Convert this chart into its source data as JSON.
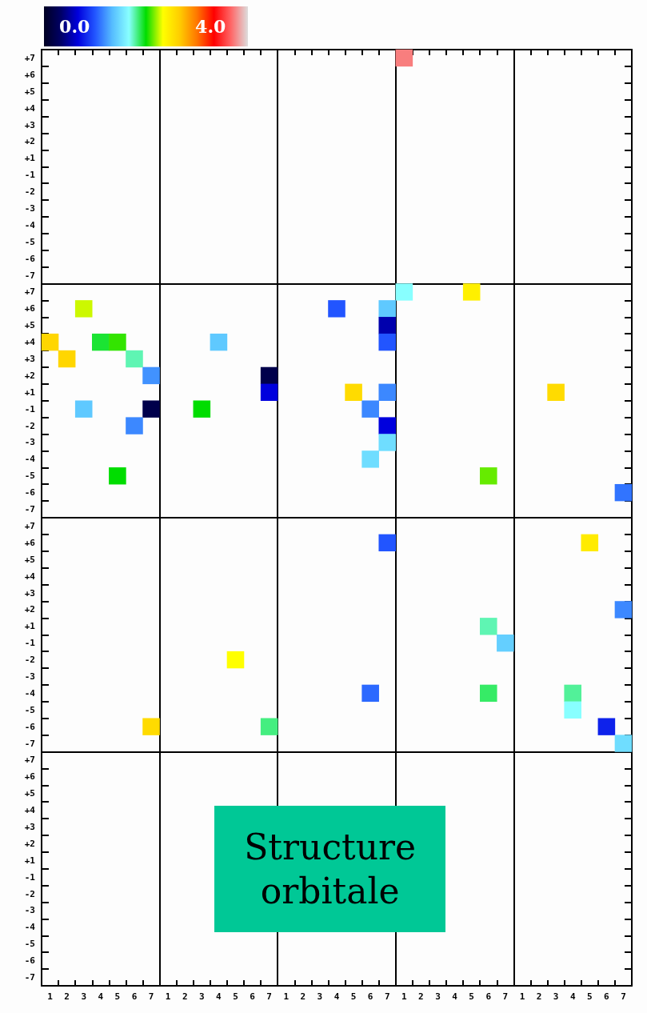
{
  "chart_data": {
    "type": "heatmap",
    "grid": true,
    "clim": [
      -0.9,
      5.1
    ],
    "cticks": [
      {
        "value": 0,
        "label": "0.0"
      },
      {
        "value": 4,
        "label": "4.0"
      }
    ],
    "annotations": [
      "Structure orbitale"
    ],
    "categories": [
      "1",
      "2",
      "3",
      "4",
      "5",
      "6",
      "7",
      "1",
      "2",
      "3",
      "4",
      "5",
      "6",
      "7",
      "1",
      "2",
      "3",
      "4",
      "5",
      "6",
      "7",
      "1",
      "2",
      "3",
      "4",
      "5",
      "6",
      "7",
      "1",
      "2",
      "3",
      "4",
      "5",
      "6",
      "7"
    ],
    "y_categories": [
      "+7",
      "+6",
      "+5",
      "+4",
      "+3",
      "+2",
      "+1",
      "-1",
      "-2",
      "-3",
      "-4",
      "-5",
      "-6",
      "-7",
      "+7",
      "+6",
      "+5",
      "+4",
      "+3",
      "+2",
      "+1",
      "-1",
      "-2",
      "-3",
      "-4",
      "-5",
      "-6",
      "-7",
      "+7",
      "+6",
      "+5",
      "+4",
      "+3",
      "+2",
      "+1",
      "-1",
      "-2",
      "-3",
      "-4",
      "-5",
      "-6",
      "-7",
      "+7",
      "+6",
      "+5",
      "+4",
      "+3",
      "+2",
      "+1",
      "-1",
      "-2",
      "-3",
      "-4",
      "-5",
      "-6",
      "-7"
    ],
    "cells": [
      [
        null,
        null,
        null,
        null,
        null,
        null,
        null,
        null,
        null,
        null,
        null,
        null,
        null,
        null,
        null,
        null,
        null,
        null,
        null,
        null,
        null,
        4.7,
        null,
        null,
        null,
        null,
        null,
        null,
        null,
        null,
        null,
        null,
        null,
        null,
        null
      ],
      [
        null,
        null,
        null,
        null,
        null,
        null,
        null,
        null,
        null,
        null,
        null,
        null,
        null,
        null,
        null,
        null,
        null,
        null,
        null,
        null,
        null,
        null,
        null,
        null,
        null,
        null,
        null,
        null,
        null,
        null,
        null,
        null,
        null,
        null,
        null
      ],
      [
        null,
        null,
        null,
        null,
        null,
        null,
        null,
        null,
        null,
        null,
        null,
        null,
        null,
        null,
        null,
        null,
        null,
        null,
        null,
        null,
        null,
        null,
        null,
        null,
        null,
        null,
        null,
        null,
        null,
        null,
        null,
        null,
        null,
        null,
        null
      ],
      [
        null,
        null,
        null,
        null,
        null,
        null,
        null,
        null,
        null,
        null,
        null,
        null,
        null,
        null,
        null,
        null,
        null,
        null,
        null,
        null,
        null,
        null,
        null,
        null,
        null,
        null,
        null,
        null,
        null,
        null,
        null,
        null,
        null,
        null,
        null
      ],
      [
        null,
        null,
        null,
        null,
        null,
        null,
        null,
        null,
        null,
        null,
        null,
        null,
        null,
        null,
        null,
        null,
        null,
        null,
        null,
        null,
        null,
        null,
        null,
        null,
        null,
        null,
        null,
        null,
        null,
        null,
        null,
        null,
        null,
        null,
        null
      ],
      [
        null,
        null,
        null,
        null,
        null,
        null,
        null,
        null,
        null,
        null,
        null,
        null,
        null,
        null,
        null,
        null,
        null,
        null,
        null,
        null,
        null,
        null,
        null,
        null,
        null,
        null,
        null,
        null,
        null,
        null,
        null,
        null,
        null,
        null,
        null
      ],
      [
        null,
        null,
        null,
        null,
        null,
        null,
        null,
        null,
        null,
        null,
        null,
        null,
        null,
        null,
        null,
        null,
        null,
        null,
        null,
        null,
        null,
        null,
        null,
        null,
        null,
        null,
        null,
        null,
        null,
        null,
        null,
        null,
        null,
        null,
        null
      ],
      [
        null,
        null,
        null,
        null,
        null,
        null,
        null,
        null,
        null,
        null,
        null,
        null,
        null,
        null,
        null,
        null,
        null,
        null,
        null,
        null,
        null,
        null,
        null,
        null,
        null,
        null,
        null,
        null,
        null,
        null,
        null,
        null,
        null,
        null,
        null
      ],
      [
        null,
        null,
        null,
        null,
        null,
        null,
        null,
        null,
        null,
        null,
        null,
        null,
        null,
        null,
        null,
        null,
        null,
        null,
        null,
        null,
        null,
        null,
        null,
        null,
        null,
        null,
        null,
        null,
        null,
        null,
        null,
        null,
        null,
        null,
        null
      ],
      [
        null,
        null,
        null,
        null,
        null,
        null,
        null,
        null,
        null,
        null,
        null,
        null,
        null,
        null,
        null,
        null,
        null,
        null,
        null,
        null,
        null,
        null,
        null,
        null,
        null,
        null,
        null,
        null,
        null,
        null,
        null,
        null,
        null,
        null,
        null
      ],
      [
        null,
        null,
        null,
        null,
        null,
        null,
        null,
        null,
        null,
        null,
        null,
        null,
        null,
        null,
        null,
        null,
        null,
        null,
        null,
        null,
        null,
        null,
        null,
        null,
        null,
        null,
        null,
        null,
        null,
        null,
        null,
        null,
        null,
        null,
        null
      ],
      [
        null,
        null,
        null,
        null,
        null,
        null,
        null,
        null,
        null,
        null,
        null,
        null,
        null,
        null,
        null,
        null,
        null,
        null,
        null,
        null,
        null,
        null,
        null,
        null,
        null,
        null,
        null,
        null,
        null,
        null,
        null,
        null,
        null,
        null,
        null
      ],
      [
        null,
        null,
        null,
        null,
        null,
        null,
        null,
        null,
        null,
        null,
        null,
        null,
        null,
        null,
        null,
        null,
        null,
        null,
        null,
        null,
        null,
        null,
        null,
        null,
        null,
        null,
        null,
        null,
        null,
        null,
        null,
        null,
        null,
        null,
        null
      ],
      [
        null,
        null,
        null,
        null,
        null,
        null,
        null,
        null,
        null,
        null,
        null,
        null,
        null,
        null,
        null,
        null,
        null,
        null,
        null,
        null,
        null,
        null,
        null,
        null,
        null,
        null,
        null,
        null,
        null,
        null,
        null,
        null,
        null,
        null,
        null
      ],
      [
        null,
        null,
        null,
        null,
        null,
        null,
        null,
        null,
        null,
        null,
        null,
        null,
        null,
        null,
        null,
        null,
        null,
        null,
        null,
        null,
        null,
        1.6,
        null,
        null,
        null,
        2.75,
        null,
        null,
        null,
        null,
        null,
        null,
        null,
        null,
        null
      ],
      [
        null,
        null,
        2.5,
        null,
        null,
        null,
        null,
        null,
        null,
        null,
        null,
        null,
        null,
        null,
        null,
        null,
        null,
        0.6,
        null,
        null,
        1.2,
        null,
        null,
        null,
        null,
        null,
        null,
        null,
        null,
        null,
        null,
        null,
        null,
        null,
        null
      ],
      [
        null,
        null,
        null,
        null,
        null,
        null,
        null,
        null,
        null,
        null,
        null,
        null,
        null,
        null,
        null,
        null,
        null,
        null,
        null,
        null,
        -0.1,
        null,
        null,
        null,
        null,
        null,
        null,
        null,
        null,
        null,
        null,
        null,
        null,
        null,
        null
      ],
      [
        3.0,
        null,
        null,
        2.0,
        2.2,
        null,
        null,
        null,
        null,
        null,
        1.2,
        null,
        null,
        null,
        null,
        null,
        null,
        null,
        null,
        null,
        0.6,
        null,
        null,
        null,
        null,
        null,
        null,
        null,
        null,
        null,
        null,
        null,
        null,
        null,
        null
      ],
      [
        null,
        3.0,
        null,
        null,
        null,
        1.75,
        null,
        null,
        null,
        null,
        null,
        null,
        null,
        null,
        null,
        null,
        null,
        null,
        null,
        null,
        null,
        null,
        null,
        null,
        null,
        null,
        null,
        null,
        null,
        null,
        null,
        null,
        null,
        null,
        null
      ],
      [
        null,
        null,
        null,
        null,
        null,
        null,
        0.9,
        null,
        null,
        null,
        null,
        null,
        null,
        -0.6,
        null,
        null,
        null,
        null,
        null,
        null,
        null,
        null,
        null,
        null,
        null,
        null,
        null,
        null,
        null,
        null,
        null,
        null,
        null,
        null,
        null
      ],
      [
        null,
        null,
        null,
        null,
        null,
        null,
        null,
        null,
        null,
        null,
        null,
        null,
        null,
        0.1,
        null,
        null,
        null,
        null,
        2.95,
        null,
        0.85,
        null,
        null,
        null,
        null,
        null,
        null,
        null,
        null,
        null,
        2.95,
        null,
        null,
        null,
        null
      ],
      [
        null,
        null,
        1.2,
        null,
        null,
        null,
        -0.6,
        null,
        null,
        2.1,
        null,
        null,
        null,
        null,
        null,
        null,
        null,
        null,
        null,
        0.85,
        null,
        null,
        null,
        null,
        null,
        null,
        null,
        null,
        null,
        null,
        null,
        null,
        null,
        null,
        null
      ],
      [
        null,
        null,
        null,
        null,
        null,
        0.85,
        null,
        null,
        null,
        null,
        null,
        null,
        null,
        null,
        null,
        null,
        null,
        null,
        null,
        null,
        0.1,
        null,
        null,
        null,
        null,
        null,
        null,
        null,
        null,
        null,
        null,
        null,
        null,
        null,
        null
      ],
      [
        null,
        null,
        null,
        null,
        null,
        null,
        null,
        null,
        null,
        null,
        null,
        null,
        null,
        null,
        null,
        null,
        null,
        null,
        null,
        null,
        1.35,
        null,
        null,
        null,
        null,
        null,
        null,
        null,
        null,
        null,
        null,
        null,
        null,
        null,
        null
      ],
      [
        null,
        null,
        null,
        null,
        null,
        null,
        null,
        null,
        null,
        null,
        null,
        null,
        null,
        null,
        null,
        null,
        null,
        null,
        null,
        1.35,
        null,
        null,
        null,
        null,
        null,
        null,
        null,
        null,
        null,
        null,
        null,
        null,
        null,
        null,
        null
      ],
      [
        null,
        null,
        null,
        null,
        2.1,
        null,
        null,
        null,
        null,
        null,
        null,
        null,
        null,
        null,
        null,
        null,
        null,
        null,
        null,
        null,
        null,
        null,
        null,
        null,
        null,
        null,
        2.3,
        null,
        null,
        null,
        null,
        null,
        null,
        null,
        null
      ],
      [
        null,
        null,
        null,
        null,
        null,
        null,
        null,
        null,
        null,
        null,
        null,
        null,
        null,
        null,
        null,
        null,
        null,
        null,
        null,
        null,
        null,
        null,
        null,
        null,
        null,
        null,
        null,
        null,
        null,
        null,
        null,
        null,
        null,
        null,
        0.75
      ],
      [
        null,
        null,
        null,
        null,
        null,
        null,
        null,
        null,
        null,
        null,
        null,
        null,
        null,
        null,
        null,
        null,
        null,
        null,
        null,
        null,
        null,
        null,
        null,
        null,
        null,
        null,
        null,
        null,
        null,
        null,
        null,
        null,
        null,
        null,
        null
      ],
      [
        null,
        null,
        null,
        null,
        null,
        null,
        null,
        null,
        null,
        null,
        null,
        null,
        null,
        null,
        null,
        null,
        null,
        null,
        null,
        null,
        null,
        null,
        null,
        null,
        null,
        null,
        null,
        null,
        null,
        null,
        null,
        null,
        null,
        null,
        null
      ],
      [
        null,
        null,
        null,
        null,
        null,
        null,
        null,
        null,
        null,
        null,
        null,
        null,
        null,
        null,
        null,
        null,
        null,
        null,
        null,
        null,
        0.6,
        null,
        null,
        null,
        null,
        null,
        null,
        null,
        null,
        null,
        null,
        null,
        2.8,
        null,
        null
      ],
      [
        null,
        null,
        null,
        null,
        null,
        null,
        null,
        null,
        null,
        null,
        null,
        null,
        null,
        null,
        null,
        null,
        null,
        null,
        null,
        null,
        null,
        null,
        null,
        null,
        null,
        null,
        null,
        null,
        null,
        null,
        null,
        null,
        null,
        null,
        null
      ],
      [
        null,
        null,
        null,
        null,
        null,
        null,
        null,
        null,
        null,
        null,
        null,
        null,
        null,
        null,
        null,
        null,
        null,
        null,
        null,
        null,
        null,
        null,
        null,
        null,
        null,
        null,
        null,
        null,
        null,
        null,
        null,
        null,
        null,
        null,
        null
      ],
      [
        null,
        null,
        null,
        null,
        null,
        null,
        null,
        null,
        null,
        null,
        null,
        null,
        null,
        null,
        null,
        null,
        null,
        null,
        null,
        null,
        null,
        null,
        null,
        null,
        null,
        null,
        null,
        null,
        null,
        null,
        null,
        null,
        null,
        null,
        null
      ],
      [
        null,
        null,
        null,
        null,
        null,
        null,
        null,
        null,
        null,
        null,
        null,
        null,
        null,
        null,
        null,
        null,
        null,
        null,
        null,
        null,
        null,
        null,
        null,
        null,
        null,
        null,
        null,
        null,
        null,
        null,
        null,
        null,
        null,
        null,
        0.85
      ],
      [
        null,
        null,
        null,
        null,
        null,
        null,
        null,
        null,
        null,
        null,
        null,
        null,
        null,
        null,
        null,
        null,
        null,
        null,
        null,
        null,
        null,
        null,
        null,
        null,
        null,
        null,
        1.75,
        null,
        null,
        null,
        null,
        null,
        null,
        null,
        null
      ],
      [
        null,
        null,
        null,
        null,
        null,
        null,
        null,
        null,
        null,
        null,
        null,
        null,
        null,
        null,
        null,
        null,
        null,
        null,
        null,
        null,
        null,
        null,
        null,
        null,
        null,
        null,
        null,
        1.25,
        null,
        null,
        null,
        null,
        null,
        null,
        null
      ],
      [
        null,
        null,
        null,
        null,
        null,
        null,
        null,
        null,
        null,
        null,
        null,
        2.6,
        null,
        null,
        null,
        null,
        null,
        null,
        null,
        null,
        null,
        null,
        null,
        null,
        null,
        null,
        null,
        null,
        null,
        null,
        null,
        null,
        null,
        null,
        null
      ],
      [
        null,
        null,
        null,
        null,
        null,
        null,
        null,
        null,
        null,
        null,
        null,
        null,
        null,
        null,
        null,
        null,
        null,
        null,
        null,
        null,
        null,
        null,
        null,
        null,
        null,
        null,
        null,
        null,
        null,
        null,
        null,
        null,
        null,
        null,
        null
      ],
      [
        null,
        null,
        null,
        null,
        null,
        null,
        null,
        null,
        null,
        null,
        null,
        null,
        null,
        null,
        null,
        null,
        null,
        null,
        null,
        0.7,
        null,
        null,
        null,
        null,
        null,
        null,
        1.9,
        null,
        null,
        null,
        null,
        1.8,
        null,
        null,
        null
      ],
      [
        null,
        null,
        null,
        null,
        null,
        null,
        null,
        null,
        null,
        null,
        null,
        null,
        null,
        null,
        null,
        null,
        null,
        null,
        null,
        null,
        null,
        null,
        null,
        null,
        null,
        null,
        null,
        null,
        null,
        null,
        null,
        1.6,
        null,
        null,
        null
      ],
      [
        null,
        null,
        null,
        null,
        null,
        null,
        2.95,
        null,
        null,
        null,
        null,
        null,
        null,
        1.85,
        null,
        null,
        null,
        null,
        null,
        null,
        null,
        null,
        null,
        null,
        null,
        null,
        null,
        null,
        null,
        null,
        null,
        null,
        null,
        0.3,
        null
      ],
      [
        null,
        null,
        null,
        null,
        null,
        null,
        null,
        null,
        null,
        null,
        null,
        null,
        null,
        null,
        null,
        null,
        null,
        null,
        null,
        null,
        null,
        null,
        null,
        null,
        null,
        null,
        null,
        null,
        null,
        null,
        null,
        null,
        null,
        null,
        1.35
      ],
      [
        null,
        null,
        null,
        null,
        null,
        null,
        null,
        null,
        null,
        null,
        null,
        null,
        null,
        null,
        null,
        null,
        null,
        null,
        null,
        null,
        null,
        null,
        null,
        null,
        null,
        null,
        null,
        null,
        null,
        null,
        null,
        null,
        null,
        null,
        null
      ],
      [
        null,
        null,
        null,
        null,
        null,
        null,
        null,
        null,
        null,
        null,
        null,
        null,
        null,
        null,
        null,
        null,
        null,
        null,
        null,
        null,
        null,
        null,
        null,
        null,
        null,
        null,
        null,
        null,
        null,
        null,
        null,
        null,
        null,
        null,
        null
      ],
      [
        null,
        null,
        null,
        null,
        null,
        null,
        null,
        null,
        null,
        null,
        null,
        null,
        null,
        null,
        null,
        null,
        null,
        null,
        null,
        null,
        null,
        null,
        null,
        null,
        null,
        null,
        null,
        null,
        null,
        null,
        null,
        null,
        null,
        null,
        null
      ],
      [
        null,
        null,
        null,
        null,
        null,
        null,
        null,
        null,
        null,
        null,
        null,
        null,
        null,
        null,
        null,
        null,
        null,
        null,
        null,
        null,
        null,
        null,
        null,
        null,
        null,
        null,
        null,
        null,
        null,
        null,
        null,
        null,
        null,
        null,
        null
      ],
      [
        null,
        null,
        null,
        null,
        null,
        null,
        null,
        null,
        null,
        null,
        null,
        null,
        null,
        null,
        null,
        null,
        null,
        null,
        null,
        null,
        null,
        null,
        null,
        null,
        null,
        null,
        null,
        null,
        null,
        null,
        null,
        null,
        null,
        null,
        null
      ],
      [
        null,
        null,
        null,
        null,
        null,
        null,
        null,
        null,
        null,
        null,
        null,
        null,
        null,
        null,
        null,
        null,
        null,
        null,
        null,
        null,
        null,
        null,
        null,
        null,
        null,
        null,
        null,
        null,
        null,
        null,
        null,
        null,
        null,
        null,
        null
      ],
      [
        null,
        null,
        null,
        null,
        null,
        null,
        null,
        null,
        null,
        null,
        null,
        null,
        null,
        null,
        null,
        null,
        null,
        null,
        null,
        null,
        null,
        null,
        null,
        null,
        null,
        null,
        null,
        null,
        null,
        null,
        null,
        null,
        null,
        null,
        null
      ],
      [
        null,
        null,
        null,
        null,
        null,
        null,
        null,
        null,
        null,
        null,
        null,
        null,
        null,
        null,
        null,
        null,
        null,
        null,
        null,
        null,
        null,
        null,
        null,
        null,
        null,
        null,
        null,
        null,
        null,
        null,
        null,
        null,
        null,
        null,
        null
      ],
      [
        null,
        null,
        null,
        null,
        null,
        null,
        null,
        null,
        null,
        null,
        null,
        null,
        null,
        null,
        null,
        null,
        null,
        null,
        null,
        null,
        null,
        null,
        null,
        null,
        null,
        null,
        null,
        null,
        null,
        null,
        null,
        null,
        null,
        null,
        null
      ],
      [
        null,
        null,
        null,
        null,
        null,
        null,
        null,
        null,
        null,
        null,
        null,
        null,
        null,
        null,
        null,
        null,
        null,
        null,
        null,
        null,
        null,
        null,
        null,
        null,
        null,
        null,
        null,
        null,
        null,
        null,
        null,
        null,
        null,
        null,
        null
      ],
      [
        null,
        null,
        null,
        null,
        null,
        null,
        null,
        null,
        null,
        null,
        null,
        null,
        null,
        null,
        null,
        null,
        null,
        null,
        null,
        null,
        null,
        null,
        null,
        null,
        null,
        null,
        null,
        null,
        null,
        null,
        null,
        null,
        null,
        null,
        null
      ],
      [
        null,
        null,
        null,
        null,
        null,
        null,
        null,
        null,
        null,
        null,
        null,
        null,
        null,
        null,
        null,
        null,
        null,
        null,
        null,
        null,
        null,
        null,
        null,
        null,
        null,
        null,
        null,
        null,
        null,
        null,
        null,
        null,
        null,
        null,
        null
      ],
      [
        null,
        null,
        null,
        null,
        null,
        null,
        null,
        null,
        null,
        null,
        null,
        null,
        null,
        null,
        null,
        null,
        null,
        null,
        null,
        null,
        null,
        null,
        null,
        null,
        null,
        null,
        null,
        null,
        null,
        null,
        null,
        null,
        null,
        null,
        null
      ],
      [
        null,
        null,
        null,
        null,
        null,
        null,
        null,
        null,
        null,
        null,
        null,
        null,
        null,
        null,
        null,
        null,
        null,
        null,
        null,
        null,
        null,
        null,
        null,
        null,
        null,
        null,
        null,
        null,
        null,
        null,
        null,
        null,
        null,
        null,
        null
      ]
    ]
  }
}
